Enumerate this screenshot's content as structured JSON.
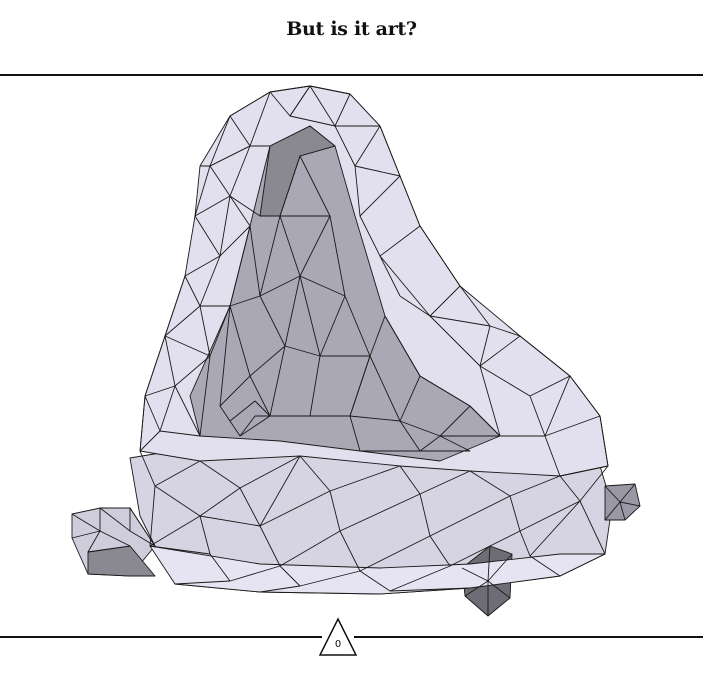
{
  "header": {
    "title": "But is it art?"
  },
  "viewer": {
    "mesh_name": "triangulated-blob",
    "face_color_light": "#e6e4f2",
    "face_color_mid": "#b2b0bd",
    "face_color_dark": "#8a8891",
    "edge_color": "#1a1a1a"
  },
  "footer": {
    "page_number": "0"
  }
}
